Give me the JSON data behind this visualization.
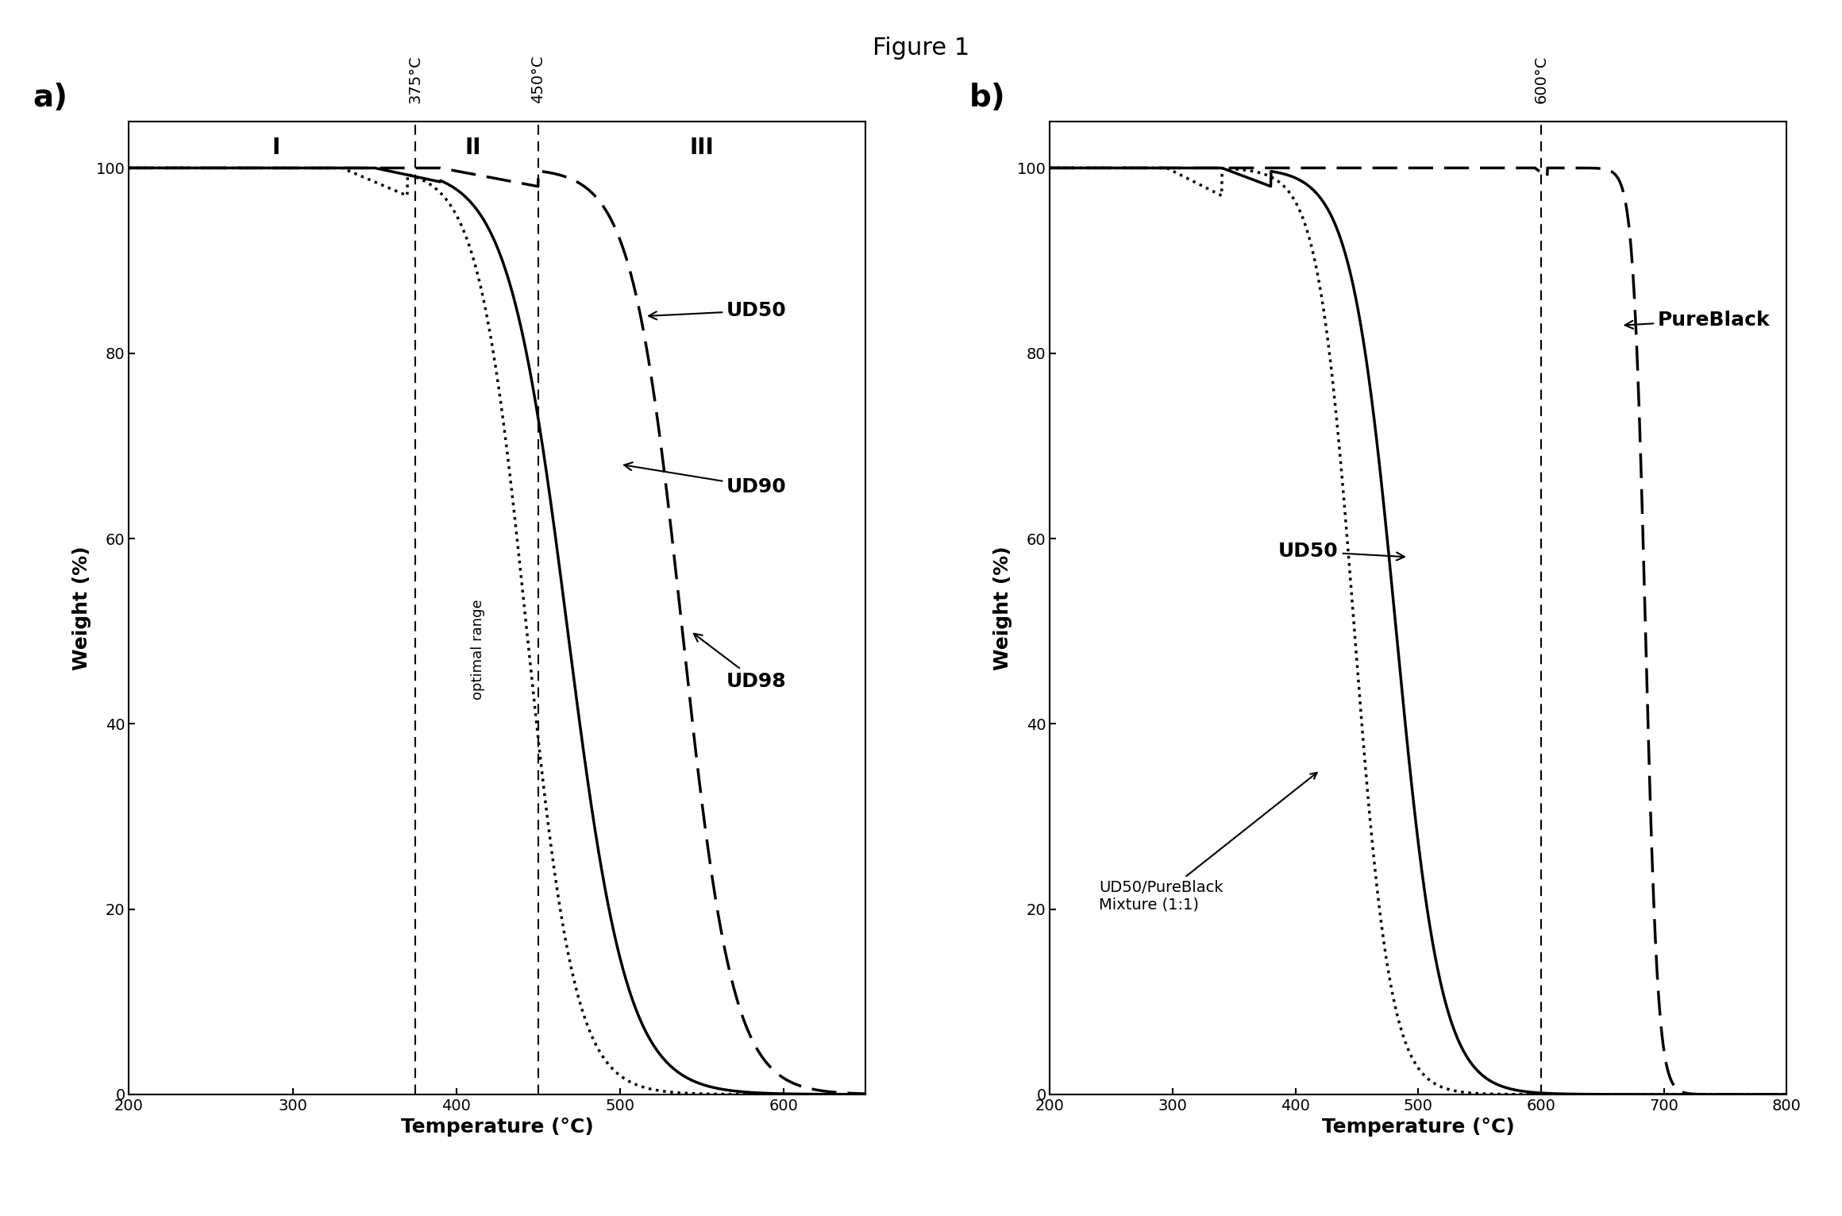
{
  "figure_title": "Figure 1",
  "panel_a": {
    "xlim": [
      200,
      650
    ],
    "ylim": [
      0,
      105
    ],
    "xlabel": "Temperature (°C)",
    "ylabel": "Weight (%)",
    "label_a": "a)",
    "xticks": [
      200,
      300,
      400,
      500,
      600
    ],
    "yticks": [
      0,
      20,
      40,
      60,
      80,
      100
    ],
    "vline1": 375,
    "vline2": 450,
    "vline1_label": "375°C",
    "vline2_label": "450°C",
    "region_label_I": "I",
    "region_label_II": "II",
    "region_label_III": "III",
    "optimal_range_label": "optimal range"
  },
  "panel_b": {
    "xlim": [
      200,
      800
    ],
    "ylim": [
      0,
      105
    ],
    "xlabel": "Temperature (°C)",
    "ylabel": "Weight (%)",
    "label_b": "b)",
    "xticks": [
      200,
      300,
      400,
      500,
      600,
      700,
      800
    ],
    "yticks": [
      0,
      20,
      40,
      60,
      80,
      100
    ],
    "vline1": 600,
    "vline1_label": "600°C"
  }
}
